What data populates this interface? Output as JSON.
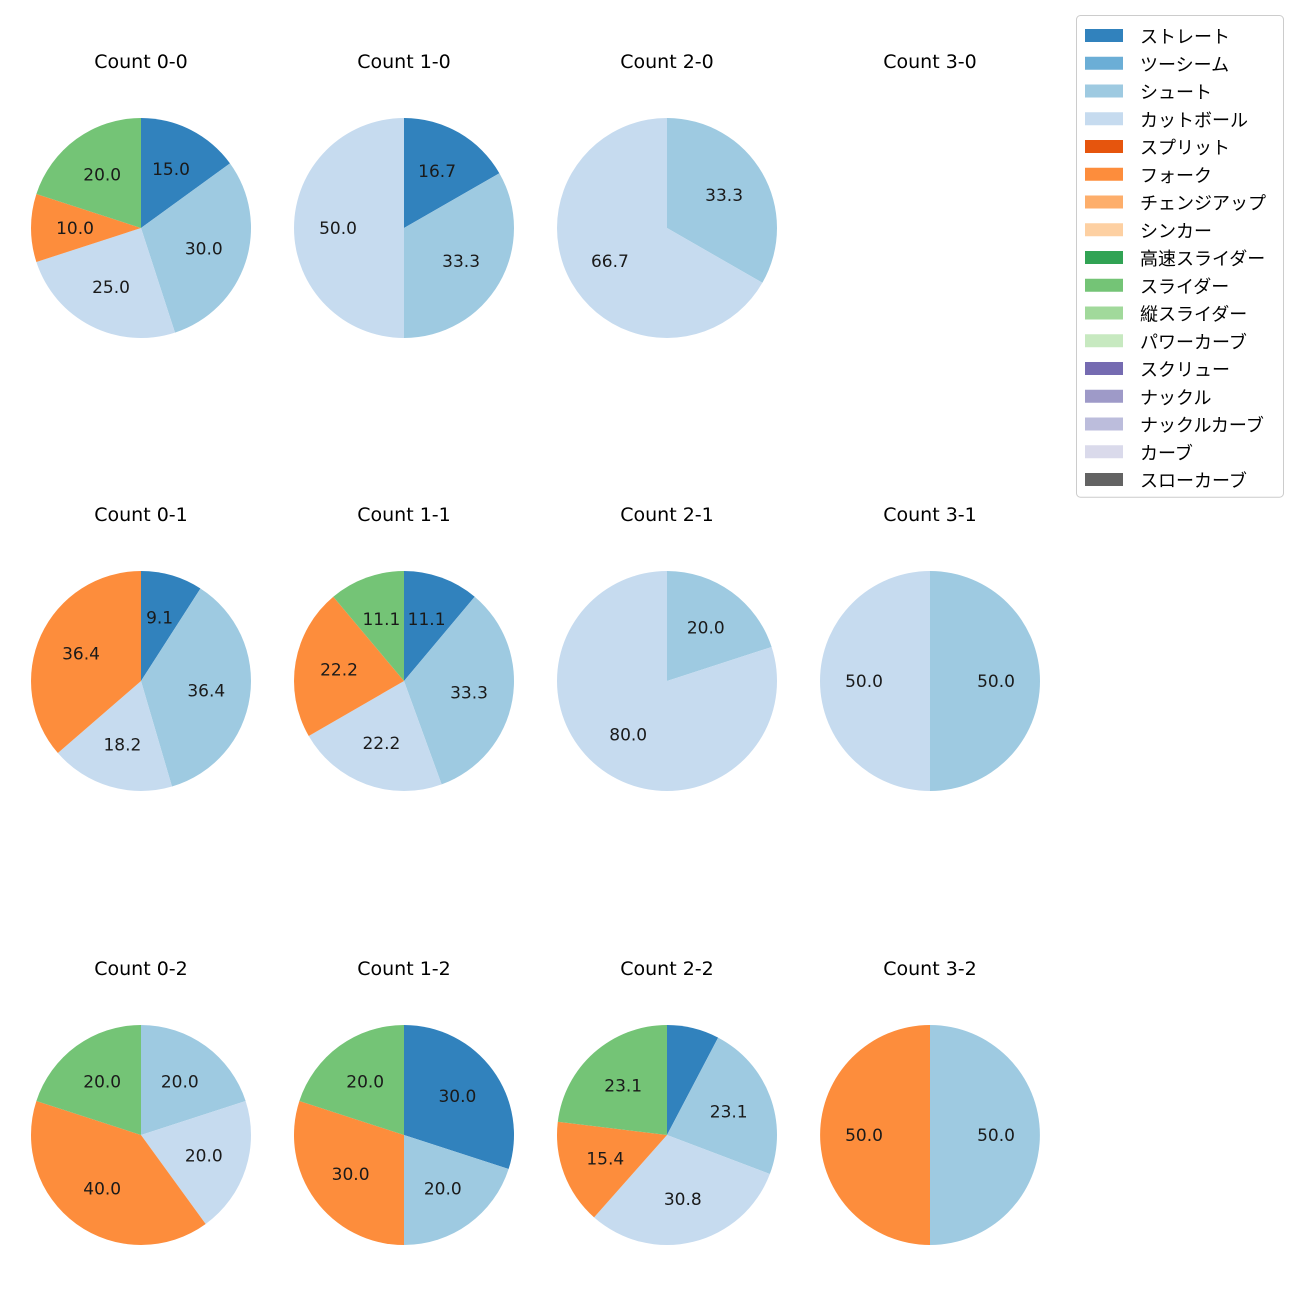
{
  "chart_data": {
    "type": "pie",
    "legend": {
      "placement": "top-right",
      "entries": [
        {
          "name": "ストレート",
          "color": "#3182bd"
        },
        {
          "name": "ツーシーム",
          "color": "#6baed6"
        },
        {
          "name": "シュート",
          "color": "#9ecae1"
        },
        {
          "name": "カットボール",
          "color": "#c6dbef"
        },
        {
          "name": "スプリット",
          "color": "#e6550d"
        },
        {
          "name": "フォーク",
          "color": "#fd8d3c"
        },
        {
          "name": "チェンジアップ",
          "color": "#fdae6b"
        },
        {
          "name": "シンカー",
          "color": "#fdd0a2"
        },
        {
          "name": "高速スライダー",
          "color": "#31a354"
        },
        {
          "name": "スライダー",
          "color": "#74c476"
        },
        {
          "name": "縦スライダー",
          "color": "#a1d99b"
        },
        {
          "name": "パワーカーブ",
          "color": "#c7e9c0"
        },
        {
          "name": "スクリュー",
          "color": "#756bb1"
        },
        {
          "name": "ナックル",
          "color": "#9e9ac8"
        },
        {
          "name": "ナックルカーブ",
          "color": "#bcbddc"
        },
        {
          "name": "カーブ",
          "color": "#dadaeb"
        },
        {
          "name": "スローカーブ",
          "color": "#636363"
        }
      ]
    },
    "pies": [
      {
        "title": "Count 0-0",
        "slices": [
          {
            "pitch": "ストレート",
            "value": 15.0,
            "label": "15.0"
          },
          {
            "pitch": "シュート",
            "value": 30.0,
            "label": "30.0"
          },
          {
            "pitch": "カットボール",
            "value": 25.0,
            "label": "25.0"
          },
          {
            "pitch": "フォーク",
            "value": 10.0,
            "label": "10.0"
          },
          {
            "pitch": "スライダー",
            "value": 20.0,
            "label": "20.0"
          }
        ]
      },
      {
        "title": "Count 1-0",
        "slices": [
          {
            "pitch": "ストレート",
            "value": 16.7,
            "label": "16.7"
          },
          {
            "pitch": "シュート",
            "value": 33.3,
            "label": "33.3"
          },
          {
            "pitch": "カットボール",
            "value": 50.0,
            "label": "50.0"
          }
        ]
      },
      {
        "title": "Count 2-0",
        "slices": [
          {
            "pitch": "シュート",
            "value": 33.3,
            "label": "33.3"
          },
          {
            "pitch": "カットボール",
            "value": 66.7,
            "label": "66.7"
          }
        ]
      },
      {
        "title": "Count 3-0",
        "slices": []
      },
      {
        "title": "Count 0-1",
        "slices": [
          {
            "pitch": "ストレート",
            "value": 9.1,
            "label": "9.1"
          },
          {
            "pitch": "シュート",
            "value": 36.4,
            "label": "36.4"
          },
          {
            "pitch": "カットボール",
            "value": 18.2,
            "label": "18.2"
          },
          {
            "pitch": "フォーク",
            "value": 36.4,
            "label": "36.4"
          }
        ]
      },
      {
        "title": "Count 1-1",
        "slices": [
          {
            "pitch": "ストレート",
            "value": 11.1,
            "label": "11.1"
          },
          {
            "pitch": "シュート",
            "value": 33.3,
            "label": "33.3"
          },
          {
            "pitch": "カットボール",
            "value": 22.2,
            "label": "22.2"
          },
          {
            "pitch": "フォーク",
            "value": 22.2,
            "label": "22.2"
          },
          {
            "pitch": "スライダー",
            "value": 11.1,
            "label": "11.1"
          }
        ]
      },
      {
        "title": "Count 2-1",
        "slices": [
          {
            "pitch": "シュート",
            "value": 20.0,
            "label": "20.0"
          },
          {
            "pitch": "カットボール",
            "value": 80.0,
            "label": "80.0"
          }
        ]
      },
      {
        "title": "Count 3-1",
        "slices": [
          {
            "pitch": "シュート",
            "value": 50.0,
            "label": "50.0"
          },
          {
            "pitch": "カットボール",
            "value": 50.0,
            "label": "50.0"
          }
        ]
      },
      {
        "title": "Count 0-2",
        "slices": [
          {
            "pitch": "シュート",
            "value": 20.0,
            "label": "20.0"
          },
          {
            "pitch": "カットボール",
            "value": 20.0,
            "label": "20.0"
          },
          {
            "pitch": "フォーク",
            "value": 40.0,
            "label": "40.0"
          },
          {
            "pitch": "スライダー",
            "value": 20.0,
            "label": "20.0"
          }
        ]
      },
      {
        "title": "Count 1-2",
        "slices": [
          {
            "pitch": "ストレート",
            "value": 30.0,
            "label": "30.0"
          },
          {
            "pitch": "シュート",
            "value": 20.0,
            "label": "20.0"
          },
          {
            "pitch": "フォーク",
            "value": 30.0,
            "label": "30.0"
          },
          {
            "pitch": "スライダー",
            "value": 20.0,
            "label": "20.0"
          }
        ]
      },
      {
        "title": "Count 2-2",
        "slices": [
          {
            "pitch": "ストレート",
            "value": 7.7,
            "label": ""
          },
          {
            "pitch": "シュート",
            "value": 23.1,
            "label": "23.1"
          },
          {
            "pitch": "カットボール",
            "value": 30.8,
            "label": "30.8"
          },
          {
            "pitch": "フォーク",
            "value": 15.4,
            "label": "15.4"
          },
          {
            "pitch": "スライダー",
            "value": 23.1,
            "label": "23.1"
          }
        ]
      },
      {
        "title": "Count 3-2",
        "slices": [
          {
            "pitch": "シュート",
            "value": 50.0,
            "label": "50.0"
          },
          {
            "pitch": "フォーク",
            "value": 50.0,
            "label": "50.0"
          }
        ]
      }
    ]
  }
}
